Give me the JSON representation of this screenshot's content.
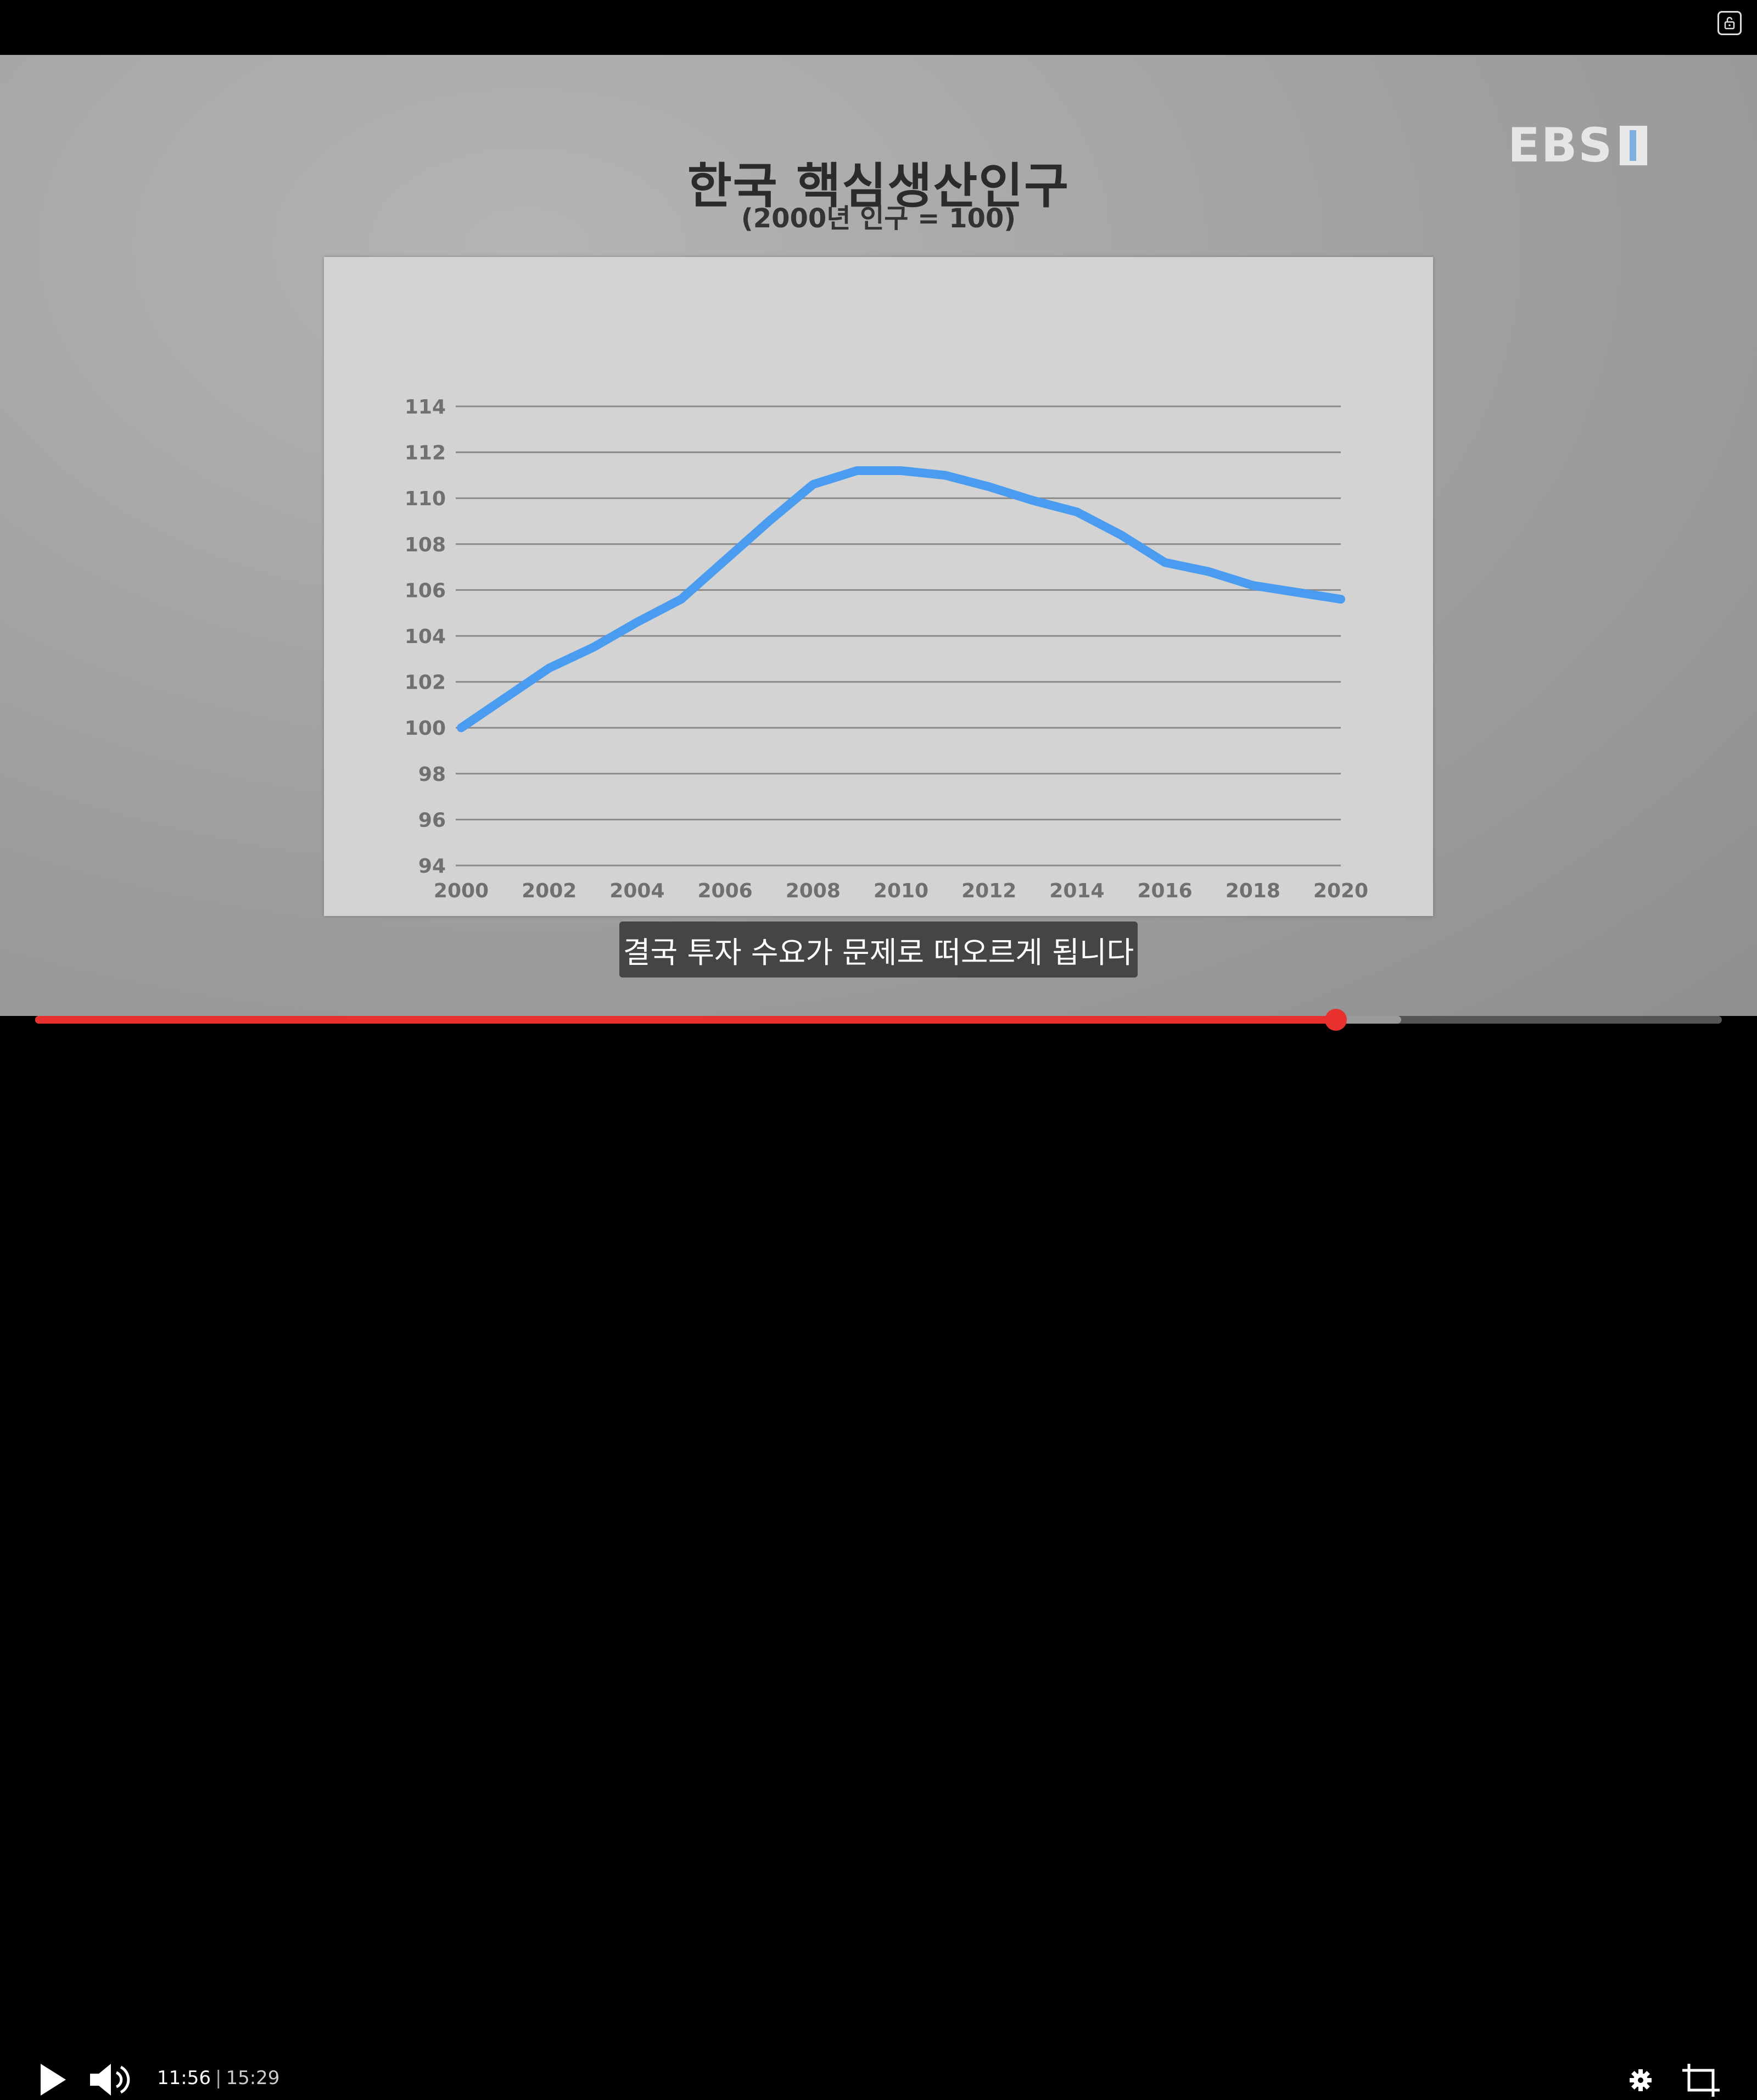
{
  "video": {
    "chart_title": "한국 핵심생산인구",
    "chart_subtitle": "(2000년 인구 = 100)",
    "logo": "EBS",
    "caption": "결국 투자 수요가 문제로 떠오르게 됩니다"
  },
  "chart_data": {
    "type": "line",
    "title": "한국 핵심생산인구",
    "subtitle": "(2000년 인구 = 100)",
    "xlabel": "",
    "ylabel": "",
    "ylim": [
      94,
      114
    ],
    "yticks": [
      "114",
      "112",
      "110",
      "108",
      "106",
      "104",
      "102",
      "100",
      "98",
      "96",
      "94"
    ],
    "xticks": [
      "2000",
      "2002",
      "2004",
      "2006",
      "2008",
      "2010",
      "2012",
      "2014",
      "2016",
      "2018",
      "2020"
    ],
    "grid": true,
    "series": [
      {
        "color": "#4a9cf0",
        "x": [
          2000,
          2001,
          2002,
          2003,
          2004,
          2005,
          2006,
          2007,
          2008,
          2009,
          2010,
          2011,
          2012,
          2013,
          2014,
          2015,
          2016,
          2017,
          2018,
          2019,
          2020
        ],
        "y": [
          100.0,
          101.3,
          102.6,
          103.5,
          104.6,
          105.6,
          107.3,
          109.0,
          110.6,
          111.2,
          111.2,
          111.0,
          110.5,
          109.9,
          109.4,
          108.4,
          107.2,
          106.8,
          106.2,
          105.9,
          105.6
        ]
      }
    ]
  },
  "player": {
    "current_time": "11:56",
    "separator": "|",
    "duration": "15:29",
    "progress": 0.771,
    "buffered": 0.81,
    "colors": {
      "progress": "#e8302f",
      "buffer": "#9a9a9a",
      "track": "#555555"
    },
    "icons": [
      "play-icon",
      "volume-icon",
      "settings-icon",
      "crop-icon",
      "lock-icon"
    ]
  }
}
